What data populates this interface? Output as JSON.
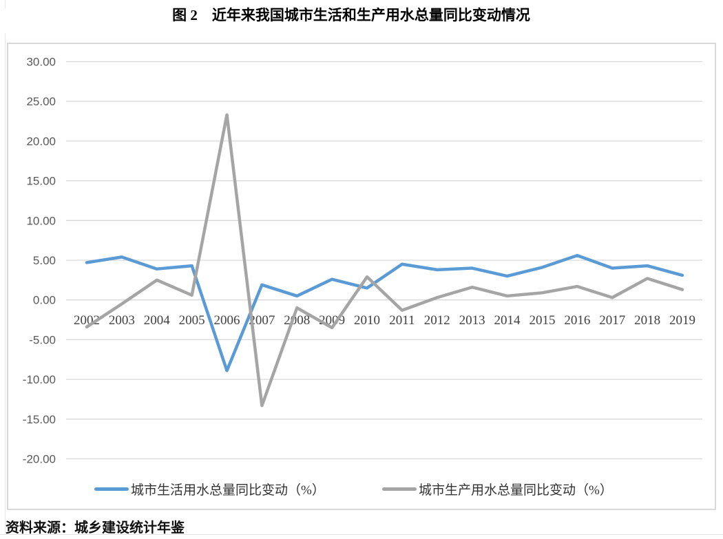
{
  "title": "图 2　近年来我国城市生活和生产用水总量同比变动情况",
  "source": "资料来源：城乡建设统计年鉴",
  "chart_data": {
    "type": "line",
    "categories": [
      "2002",
      "2003",
      "2004",
      "2005",
      "2006",
      "2007",
      "2008",
      "2009",
      "2010",
      "2011",
      "2012",
      "2013",
      "2014",
      "2015",
      "2016",
      "2017",
      "2018",
      "2019"
    ],
    "series": [
      {
        "name": "城市生活用水总量同比变动（%）",
        "color": "#5B9BD5",
        "values": [
          4.7,
          5.4,
          3.9,
          4.3,
          -8.9,
          1.9,
          0.5,
          2.6,
          1.5,
          4.5,
          3.8,
          4.0,
          3.0,
          4.1,
          5.6,
          4.0,
          4.3,
          3.1
        ]
      },
      {
        "name": "城市生产用水总量同比变动（%）",
        "color": "#A5A5A5",
        "values": [
          -3.4,
          -0.5,
          2.5,
          0.6,
          23.3,
          -13.3,
          -1.0,
          -3.5,
          2.9,
          -1.3,
          0.3,
          1.6,
          0.5,
          0.9,
          1.7,
          0.3,
          2.7,
          1.3
        ]
      }
    ],
    "xlabel": "",
    "ylabel": "",
    "ylim": [
      -20,
      30
    ],
    "y_tick_step": 5,
    "y_tick_labels": [
      "30.00",
      "25.00",
      "20.00",
      "15.00",
      "10.00",
      "5.00",
      "0.00",
      "-5.00",
      "-10.00",
      "-15.00",
      "-20.00"
    ],
    "grid": true,
    "gridline_color": "#d9d9d9",
    "legend_position": "bottom"
  }
}
